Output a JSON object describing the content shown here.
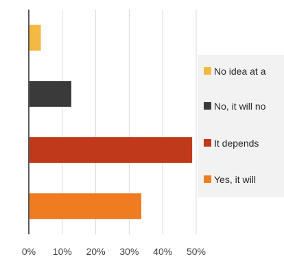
{
  "chart_data": {
    "type": "bar",
    "orientation": "horizontal",
    "categories": [
      "No idea at all",
      "No, it will not",
      "It depends",
      "Yes, it will"
    ],
    "values": [
      3.6,
      12.7,
      48.8,
      33.6
    ],
    "colors": [
      "#F4B942",
      "#3A3A3A",
      "#C0391B",
      "#F07C21"
    ],
    "xlim": [
      0,
      50
    ],
    "xticks": [
      0,
      10,
      20,
      30,
      40,
      50
    ],
    "xtick_labels": [
      "0%",
      "10%",
      "20%",
      "30%",
      "40%",
      "50%"
    ],
    "grid": true,
    "legend_position": "right",
    "legend": [
      {
        "label": "No idea at a",
        "color": "#F4B942"
      },
      {
        "label": "No, it will no",
        "color": "#3A3A3A"
      },
      {
        "label": "It depends",
        "color": "#C0391B"
      },
      {
        "label": "Yes, it will",
        "color": "#F07C21"
      }
    ]
  }
}
